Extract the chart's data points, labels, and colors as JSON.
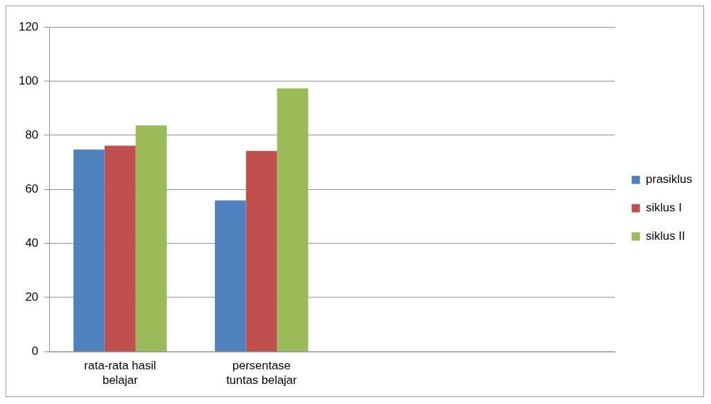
{
  "chart_data": {
    "type": "bar",
    "categories": [
      "rata-rata hasil belajar",
      "persentase tuntas belajar",
      null,
      null
    ],
    "series": [
      {
        "name": "prasiklus",
        "color": "#4f81bd",
        "values": [
          74.7,
          55.9,
          null,
          null
        ]
      },
      {
        "name": "siklus I",
        "color": "#c0504d",
        "values": [
          76.1,
          74.2,
          null,
          null
        ]
      },
      {
        "name": "siklus II",
        "color": "#9bbb59",
        "values": [
          83.6,
          97.3,
          null,
          null
        ]
      }
    ],
    "ylim": [
      0,
      120
    ],
    "yticks": [
      0,
      20,
      40,
      60,
      80,
      100,
      120
    ],
    "grid": "y",
    "legend": "right"
  }
}
